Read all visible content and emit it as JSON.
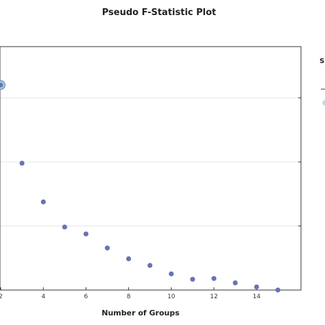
{
  "chart_data": {
    "type": "scatter",
    "title": "Pseudo F-Statistic Plot",
    "xlabel": "Number of Groups",
    "ylabel": "",
    "xlim": [
      2,
      15.9
    ],
    "ylim": [
      5,
      100
    ],
    "x_ticks": [
      2,
      4,
      6,
      8,
      10,
      12,
      14
    ],
    "y_gridlines": [
      30,
      55,
      80
    ],
    "grid": true,
    "series": [
      {
        "color": "#6a72b4",
        "x": [
          2,
          3,
          4,
          5,
          6,
          7,
          8,
          9,
          10,
          11,
          12,
          13,
          14,
          15
        ],
        "y": [
          85,
          54.5,
          39.4,
          29.6,
          26.9,
          21.4,
          17.2,
          14.6,
          11.3,
          9.2,
          9.5,
          7.8,
          6.2,
          5.0
        ]
      }
    ],
    "highlight": {
      "x": 2,
      "y": 85,
      "color": "#9fc7dc"
    },
    "legend": {
      "position": "right",
      "title_fragment": "S"
    }
  }
}
